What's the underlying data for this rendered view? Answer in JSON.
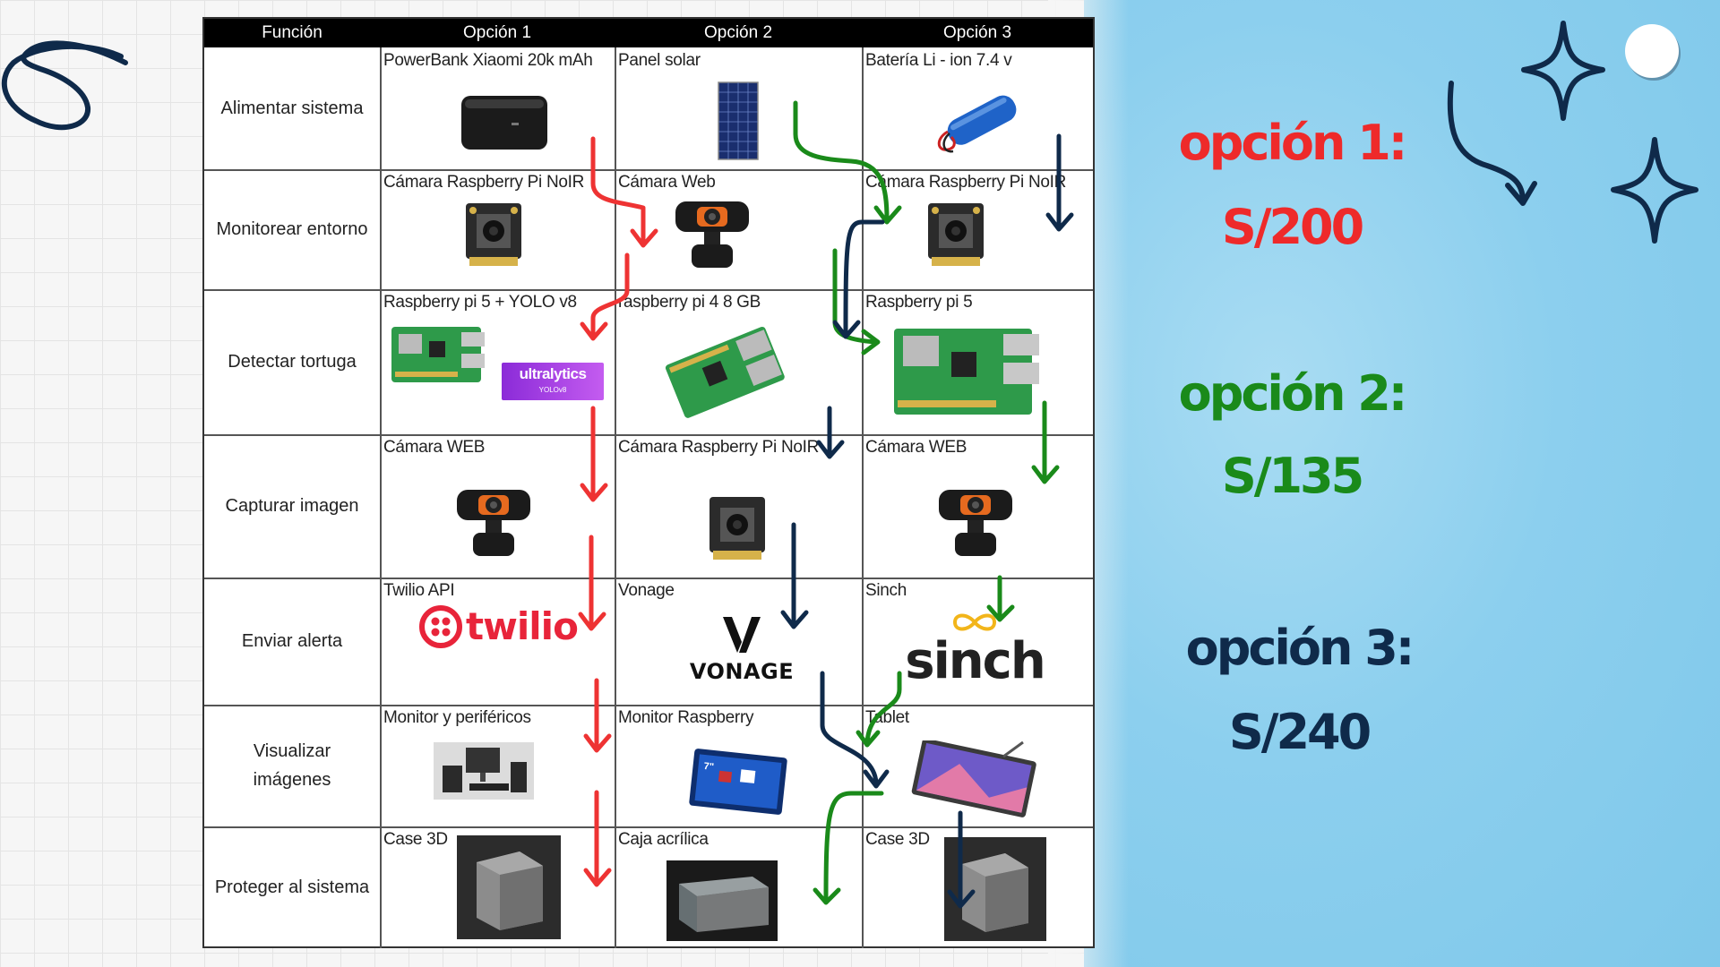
{
  "table": {
    "headers": [
      "Función",
      "Opción 1",
      "Opción 2",
      "Opción 3"
    ],
    "rows": [
      {
        "funcion": "Alimentar sistema",
        "op1": "PowerBank Xiaomi 20k mAh",
        "op2": "Panel solar",
        "op3": "Batería Li - ion 7.4 v"
      },
      {
        "funcion": "Monitorear entorno",
        "op1": "Cámara Raspberry Pi NoIR",
        "op2": "Cámara Web",
        "op3": "Cámara Raspberry Pi NoIR"
      },
      {
        "funcion": "Detectar tortuga",
        "op1": "Raspberry pi 5 + YOLO v8",
        "op2": "raspberry pi 4 8 GB",
        "op3": "Raspberry pi 5"
      },
      {
        "funcion": "Capturar imagen",
        "op1": "Cámara WEB",
        "op2": "Cámara Raspberry Pi NoIR",
        "op3": "Cámara WEB"
      },
      {
        "funcion": "Enviar alerta",
        "op1": "Twilio API",
        "op2": "Vonage",
        "op3": "Sinch"
      },
      {
        "funcion": "Visualizar imágenes",
        "op1": "Monitor y periféricos",
        "op2": "Monitor Raspberry",
        "op3": "Tablet"
      },
      {
        "funcion": "Proteger al sistema",
        "op1": "Case 3D",
        "op2": "Caja acrílica",
        "op3": "Case 3D"
      }
    ]
  },
  "logos": {
    "twilio": "twilio",
    "vonage": "VONAGE",
    "sinch": "sinch",
    "ultralytics": "ultralytics",
    "ultralytics_sub": "YOLOv8"
  },
  "summary": [
    {
      "label": "opción 1:",
      "price": "S/200",
      "color": "#ee2a2a"
    },
    {
      "label": "opción 2:",
      "price": "S/135",
      "color": "#1a8a1a"
    },
    {
      "label": "opción 3:",
      "price": "S/240",
      "color": "#0f2a4a"
    }
  ],
  "arrow_colors": {
    "option1": "#ee3333",
    "option2": "#1a8a1a",
    "option3": "#0f2a4a"
  },
  "icons": [
    "scribble-loop-icon",
    "curved-arrow-icon",
    "sparkle-star-icon",
    "circle-dot-icon"
  ]
}
